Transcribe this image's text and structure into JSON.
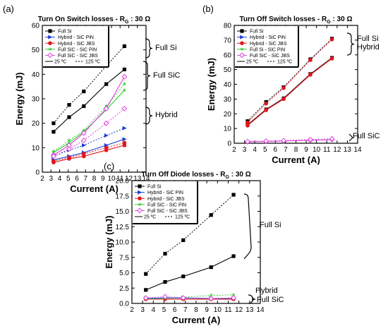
{
  "colors": {
    "full_si": "#000000",
    "hybrid_pin": "#1a3fd6",
    "hybrid_jbs": "#e0161b",
    "fullsic_pin": "#33cc33",
    "fullsic_jbs": "#e040e0",
    "dark_line_b": "#3a0a14"
  },
  "chart_data": [
    {
      "type": "line",
      "panel_label": "(a)",
      "title": "Turn On Switch losses - R",
      "title_sub": "G",
      "title_tail": " : 30 Ω",
      "xlabel": "Current (A)",
      "ylabel": "Energy (mJ)",
      "xlim": [
        2,
        14
      ],
      "ylim": [
        0,
        60
      ],
      "xticks": [
        2,
        3,
        4,
        5,
        6,
        7,
        8,
        9,
        10,
        11,
        12,
        13,
        14
      ],
      "yticks": [
        0,
        10,
        20,
        30,
        40,
        50,
        60
      ],
      "legend": {
        "items": [
          "Full Si",
          "Hybrid - SiC PiN",
          "Hybrid - SiC JBS",
          "Full SiC - SiC PiN",
          "Full SiC - SiC JBS"
        ],
        "temps": [
          "25 ºC",
          "125 ºC"
        ]
      },
      "annotations": [
        "Full Si",
        "Full SiC",
        "Hybrid"
      ],
      "series": [
        {
          "name": "Full Si",
          "temp": "25 ºC",
          "marker": "square",
          "colorKey": "full_si",
          "x": [
            3.3,
            5.1,
            6.8,
            9.4,
            11.5
          ],
          "y": [
            16.5,
            22.5,
            27,
            36,
            42
          ]
        },
        {
          "name": "Full Si",
          "temp": "125 ºC",
          "marker": "square",
          "colorKey": "full_si",
          "x": [
            3.3,
            5.1,
            6.8,
            9.4,
            11.5
          ],
          "y": [
            20,
            27.5,
            33,
            43.5,
            51.5
          ]
        },
        {
          "name": "Hybrid - SiC PiN",
          "temp": "25 ºC",
          "marker": "triangle-right",
          "colorKey": "hybrid_pin",
          "x": [
            3.3,
            5.1,
            6.8,
            9.4,
            11.5
          ],
          "y": [
            5,
            6.5,
            8,
            11,
            13.5
          ]
        },
        {
          "name": "Hybrid - SiC PiN",
          "temp": "125 ºC",
          "marker": "triangle-right",
          "colorKey": "hybrid_pin",
          "x": [
            3.3,
            5.1,
            6.8,
            9.4,
            11.5
          ],
          "y": [
            6.5,
            9,
            11,
            15,
            18
          ]
        },
        {
          "name": "Hybrid - SiC JBS",
          "temp": "25 ºC",
          "marker": "circle",
          "colorKey": "hybrid_jbs",
          "x": [
            3.3,
            5.1,
            6.8,
            9.4,
            11.5
          ],
          "y": [
            4,
            5.5,
            6.5,
            9,
            11
          ]
        },
        {
          "name": "Hybrid - SiC JBS",
          "temp": "125 ºC",
          "marker": "circle",
          "colorKey": "hybrid_jbs",
          "x": [
            3.3,
            5.1,
            6.8,
            9.4,
            11.5
          ],
          "y": [
            4.5,
            6,
            7.5,
            10,
            12
          ]
        },
        {
          "name": "Full SiC - SiC PiN",
          "temp": "25 ºC",
          "marker": "star",
          "colorKey": "fullsic_pin",
          "x": [
            3.3,
            5.1,
            6.8,
            9.4,
            11.5
          ],
          "y": [
            8,
            12,
            16.5,
            25.5,
            33.5
          ]
        },
        {
          "name": "Full SiC - SiC PiN",
          "temp": "125 ºC",
          "marker": "star",
          "colorKey": "fullsic_pin",
          "x": [
            3.3,
            5.1,
            6.8,
            9.4,
            11.5
          ],
          "y": [
            8.5,
            13,
            17,
            27,
            36
          ]
        },
        {
          "name": "Full SiC - SiC JBS",
          "temp": "25 ºC",
          "marker": "open-diamond",
          "colorKey": "fullsic_jbs",
          "x": [
            3.3,
            5.1,
            6.8,
            9.4,
            11.5
          ],
          "y": [
            7,
            11,
            16,
            26,
            39
          ]
        },
        {
          "name": "Full SiC - SiC JBS",
          "temp": "125 ºC",
          "marker": "open-diamond",
          "colorKey": "fullsic_jbs",
          "x": [
            3.3,
            5.1,
            6.8,
            9.4,
            11.5
          ],
          "y": [
            6.5,
            9.5,
            13,
            20,
            26
          ]
        }
      ]
    },
    {
      "type": "line",
      "panel_label": "(b)",
      "title": "Turn Off Switch losses - R",
      "title_sub": "G",
      "title_tail": " : 30 Ω",
      "xlabel": "Current (A)",
      "ylabel": "Energy (mJ)",
      "xlim": [
        2,
        14
      ],
      "ylim": [
        0,
        80
      ],
      "xticks": [
        2,
        3,
        4,
        5,
        6,
        7,
        8,
        9,
        10,
        11,
        12,
        13,
        14
      ],
      "yticks": [
        0,
        10,
        20,
        30,
        40,
        50,
        60,
        70,
        80
      ],
      "legend": {
        "items": [
          "Full Si",
          "Hybrid - SiC PiN",
          "Hybrid - SiC JBS",
          "Full Si - SiC PiN",
          "Full SiC - SiC JBS"
        ],
        "temps": [
          "25 ºC",
          "125 ºC"
        ]
      },
      "annotations": [
        "Full Si",
        "Hybrid",
        "Full SiC"
      ],
      "series": [
        {
          "name": "Full Si",
          "temp": "25 ºC",
          "marker": "square",
          "colorKey": "dark_line_b",
          "x": [
            3.3,
            5.1,
            6.8,
            9.4,
            11.5
          ],
          "y": [
            12.5,
            23,
            30.5,
            47,
            58
          ]
        },
        {
          "name": "Full Si",
          "temp": "125 ºC",
          "marker": "square",
          "colorKey": "full_si",
          "x": [
            3.3,
            5.1,
            6.8,
            9.4,
            11.5
          ],
          "y": [
            15,
            28,
            38,
            57,
            71
          ]
        },
        {
          "name": "Hybrid - SiC JBS",
          "temp": "25 ºC",
          "marker": "circle",
          "colorKey": "hybrid_jbs",
          "x": [
            3.3,
            5.1,
            6.8,
            9.4,
            11.5
          ],
          "y": [
            12,
            22.5,
            30,
            46.5,
            57.5
          ]
        },
        {
          "name": "Hybrid - SiC JBS",
          "temp": "125 ºC",
          "marker": "circle",
          "colorKey": "hybrid_jbs",
          "x": [
            3.3,
            5.1,
            6.8,
            9.4,
            11.5
          ],
          "y": [
            14,
            27,
            37.5,
            56.5,
            70.5
          ]
        },
        {
          "name": "Full SiC - SiC JBS",
          "temp": "25 ºC",
          "marker": "open-diamond",
          "colorKey": "fullsic_jbs",
          "x": [
            3.3,
            5.1,
            6.8,
            9.4,
            11.5
          ],
          "y": [
            1,
            1.2,
            1.5,
            2,
            2.5
          ]
        },
        {
          "name": "Full SiC - SiC JBS",
          "temp": "125 ºC",
          "marker": "open-diamond",
          "colorKey": "fullsic_jbs",
          "x": [
            3.3,
            5.1,
            6.8,
            9.4,
            11.5
          ],
          "y": [
            1.2,
            1.5,
            1.8,
            2.5,
            3
          ]
        }
      ]
    },
    {
      "type": "line",
      "panel_label": "(c)",
      "title": "Turn Off Diode losses - R",
      "title_sub": "G",
      "title_tail": " : 30 Ω",
      "xlabel": "Current (A)",
      "ylabel": "Energy (mJ)",
      "xlim": [
        2,
        14
      ],
      "ylim": [
        0,
        20
      ],
      "xticks": [
        2,
        3,
        4,
        5,
        6,
        7,
        8,
        9,
        10,
        11,
        12,
        13,
        14
      ],
      "yticks": [
        0.0,
        2.5,
        5.0,
        7.5,
        10.0,
        12.5,
        15.0,
        17.5,
        20.0
      ],
      "legend": {
        "items": [
          "Full Si",
          "Hybrid - SiC PiN",
          "Hybrid - SiC JBS",
          "Full SiC - SiC PiN",
          "Full SiC - SiC JBS"
        ],
        "temps": [
          "25 ºC",
          "125 ºC"
        ]
      },
      "annotations": [
        "Full Si",
        "Hybrid",
        "Full SiC"
      ],
      "series": [
        {
          "name": "Full Si",
          "temp": "25 ºC",
          "marker": "square",
          "colorKey": "full_si",
          "x": [
            3.3,
            5.1,
            6.8,
            9.4,
            11.5
          ],
          "y": [
            2.2,
            3.5,
            4.4,
            5.9,
            7.7
          ]
        },
        {
          "name": "Full Si",
          "temp": "125 ºC",
          "marker": "square",
          "colorKey": "full_si",
          "x": [
            3.3,
            5.1,
            6.8,
            9.4,
            11.5
          ],
          "y": [
            4.8,
            8.1,
            10.3,
            14.4,
            17.7
          ]
        },
        {
          "name": "Hybrid - SiC PiN",
          "temp": "25 ºC",
          "marker": "triangle-right",
          "colorKey": "hybrid_pin",
          "x": [
            3.3,
            5.1,
            6.8,
            9.4,
            11.5
          ],
          "y": [
            0.8,
            0.9,
            0.9,
            0.8,
            0.8
          ]
        },
        {
          "name": "Hybrid - SiC JBS",
          "temp": "25 ºC",
          "marker": "circle",
          "colorKey": "hybrid_jbs",
          "x": [
            3.3,
            5.1,
            6.8,
            9.4,
            11.5
          ],
          "y": [
            0.7,
            0.7,
            0.7,
            0.7,
            0.7
          ]
        },
        {
          "name": "Full SiC - SiC PiN",
          "temp": "125 ºC",
          "marker": "star",
          "colorKey": "fullsic_pin",
          "x": [
            3.3,
            5.1,
            6.8,
            9.4,
            11.5
          ],
          "y": [
            0.7,
            0.8,
            1.0,
            1.3,
            1.4
          ]
        },
        {
          "name": "Full SiC - SiC JBS",
          "temp": "125 ºC",
          "marker": "open-diamond",
          "colorKey": "fullsic_jbs",
          "x": [
            3.3,
            5.1,
            6.8,
            9.4,
            11.5
          ],
          "y": [
            0.9,
            1.1,
            0.9,
            0.8,
            0.9
          ]
        }
      ]
    }
  ]
}
